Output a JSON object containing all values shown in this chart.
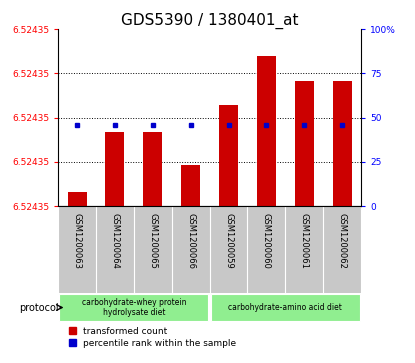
{
  "title": "GDS5390 / 1380401_at",
  "samples": [
    "GSM1200063",
    "GSM1200064",
    "GSM1200065",
    "GSM1200066",
    "GSM1200059",
    "GSM1200060",
    "GSM1200061",
    "GSM1200062"
  ],
  "red_bar_heights": [
    2.2e-05,
    0.000118,
    0.000118,
    6.5e-05,
    0.00016,
    0.000238,
    0.000198,
    0.000198
  ],
  "blue_pcts": [
    46,
    46,
    46,
    46,
    46,
    46,
    46,
    46
  ],
  "y_min": 6.52435,
  "y_range": 0.00028,
  "y_left_tick_label": "6.52435",
  "y_right_ticks": [
    0,
    25,
    50,
    75,
    100
  ],
  "y_right_labels": [
    "0",
    "25",
    "50",
    "75",
    "100%"
  ],
  "grid_pcts": [
    25,
    50,
    75
  ],
  "protocol_group1_label": "carbohydrate-whey protein\nhydrolysate diet",
  "protocol_group2_label": "carbohydrate-amino acid diet",
  "legend_red_label": "transformed count",
  "legend_blue_label": "percentile rank within the sample",
  "protocol_label": "protocol",
  "bar_color": "#CC0000",
  "dot_color": "#0000CC",
  "sample_area_bg": "#C8C8C8",
  "proto_green": "#90EE90",
  "title_fontsize": 11,
  "label_fontsize": 6,
  "tick_fontsize": 6.5,
  "legend_fontsize": 6.5
}
